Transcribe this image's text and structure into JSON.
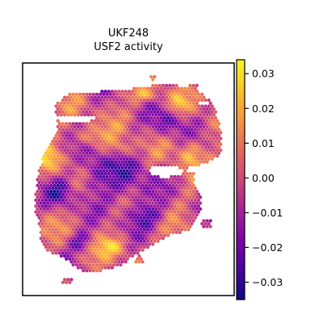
{
  "chart_data": {
    "type": "heatmap",
    "title": "UKF248",
    "subtitle": "USF2 activity",
    "xlabel": "",
    "ylabel": "",
    "colormap": "plasma",
    "colorbar": {
      "vmin": -0.035,
      "vmax": 0.034,
      "ticks": [
        0.03,
        0.02,
        0.01,
        0.0,
        -0.01,
        -0.02,
        -0.03
      ],
      "tick_labels": [
        "0.03",
        "0.02",
        "0.01",
        "0.00",
        "−0.01",
        "−0.02",
        "−0.03"
      ]
    },
    "grid": false,
    "legend": "colorbar-right"
  },
  "colors": {
    "axes": "#000000",
    "background": "#ffffff"
  }
}
